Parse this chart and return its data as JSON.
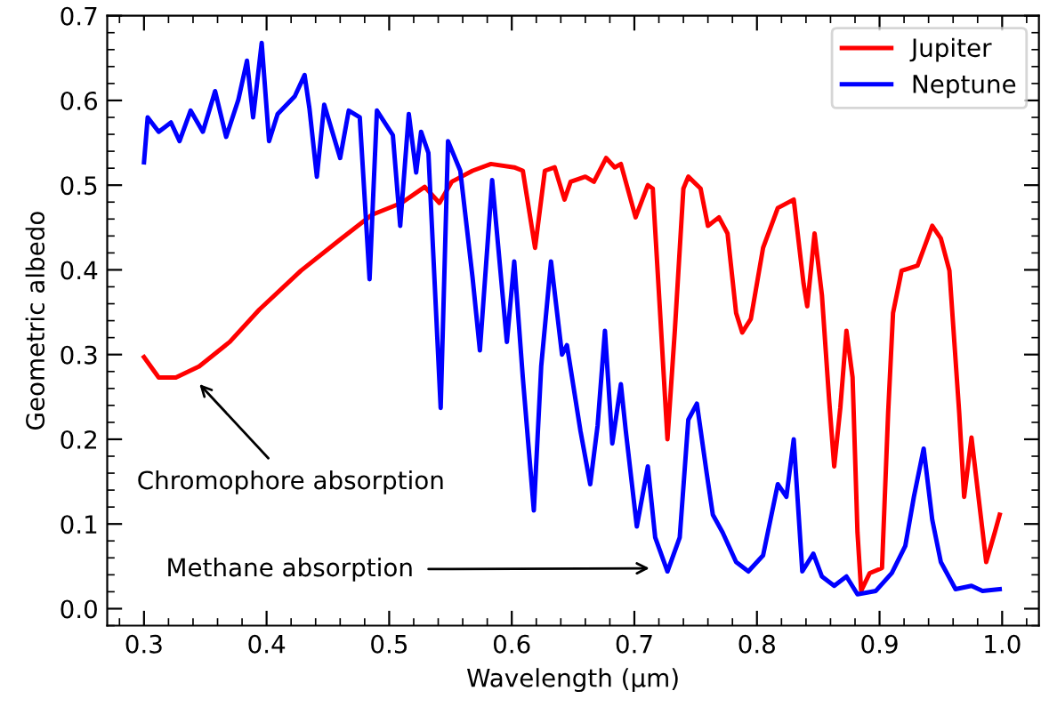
{
  "chart_data": {
    "type": "line",
    "xlabel": "Wavelength (µm)",
    "ylabel": "Geometric albedo",
    "xlim": [
      0.27,
      1.03
    ],
    "ylim": [
      -0.02,
      0.7
    ],
    "xticks": [
      0.3,
      0.4,
      0.5,
      0.6,
      0.7,
      0.8,
      0.9,
      {
        "value": 1,
        "label": "1.0"
      }
    ],
    "yticks": [
      {
        "value": 0,
        "label": "0.0"
      },
      0.1,
      0.2,
      0.3,
      0.4,
      0.5,
      0.6,
      0.7
    ],
    "grid": false,
    "legend": "top right",
    "marker": "none",
    "line_style": "solid",
    "annotations": [
      "Chromophore absorption",
      "Methane absorption"
    ],
    "series": [
      {
        "name": "Jupiter",
        "color": "#ff0000",
        "x": [
          0.3,
          0.312,
          0.326,
          0.345,
          0.37,
          0.394,
          0.428,
          0.461,
          0.486,
          0.51,
          0.529,
          0.541,
          0.551,
          0.568,
          0.583,
          0.602,
          0.609,
          0.619,
          0.627,
          0.635,
          0.643,
          0.648,
          0.66,
          0.667,
          0.677,
          0.684,
          0.689,
          0.701,
          0.711,
          0.715,
          0.721,
          0.727,
          0.733,
          0.74,
          0.744,
          0.754,
          0.76,
          0.769,
          0.776,
          0.783,
          0.788,
          0.795,
          0.805,
          0.817,
          0.83,
          0.838,
          0.841,
          0.847,
          0.853,
          0.859,
          0.863,
          0.868,
          0.873,
          0.878,
          0.882,
          0.885,
          0.892,
          0.902,
          0.907,
          0.911,
          0.918,
          0.931,
          0.943,
          0.95,
          0.957,
          0.965,
          0.969,
          0.975,
          0.987,
          0.994,
          0.998
        ],
        "values": [
          0.297,
          0.273,
          0.273,
          0.286,
          0.315,
          0.353,
          0.399,
          0.437,
          0.465,
          0.479,
          0.498,
          0.479,
          0.504,
          0.517,
          0.525,
          0.521,
          0.517,
          0.426,
          0.517,
          0.521,
          0.483,
          0.504,
          0.51,
          0.504,
          0.532,
          0.521,
          0.525,
          0.462,
          0.5,
          0.496,
          0.349,
          0.2,
          0.328,
          0.496,
          0.51,
          0.496,
          0.452,
          0.462,
          0.443,
          0.349,
          0.326,
          0.342,
          0.426,
          0.473,
          0.483,
          0.384,
          0.357,
          0.443,
          0.37,
          0.244,
          0.168,
          0.237,
          0.328,
          0.273,
          0.09,
          0.021,
          0.042,
          0.048,
          0.231,
          0.349,
          0.399,
          0.405,
          0.452,
          0.437,
          0.399,
          0.231,
          0.132,
          0.202,
          0.055,
          0.09,
          0.111
        ]
      },
      {
        "name": "Neptune",
        "color": "#0000ff",
        "x": [
          0.3,
          0.303,
          0.312,
          0.322,
          0.329,
          0.338,
          0.348,
          0.358,
          0.367,
          0.377,
          0.384,
          0.389,
          0.396,
          0.402,
          0.409,
          0.423,
          0.431,
          0.435,
          0.441,
          0.447,
          0.46,
          0.467,
          0.476,
          0.484,
          0.49,
          0.503,
          0.509,
          0.516,
          0.522,
          0.526,
          0.532,
          0.542,
          0.548,
          0.558,
          0.568,
          0.574,
          0.584,
          0.596,
          0.602,
          0.609,
          0.618,
          0.624,
          0.632,
          0.641,
          0.645,
          0.656,
          0.664,
          0.67,
          0.676,
          0.682,
          0.689,
          0.693,
          0.702,
          0.711,
          0.717,
          0.727,
          0.737,
          0.744,
          0.751,
          0.759,
          0.764,
          0.772,
          0.783,
          0.793,
          0.805,
          0.817,
          0.824,
          0.83,
          0.837,
          0.846,
          0.853,
          0.863,
          0.873,
          0.882,
          0.897,
          0.91,
          0.921,
          0.928,
          0.936,
          0.943,
          0.95,
          0.962,
          0.975,
          0.984,
          0.998
        ],
        "values": [
          0.527,
          0.58,
          0.563,
          0.574,
          0.552,
          0.588,
          0.563,
          0.611,
          0.557,
          0.601,
          0.647,
          0.58,
          0.668,
          0.552,
          0.584,
          0.605,
          0.63,
          0.59,
          0.51,
          0.595,
          0.532,
          0.588,
          0.58,
          0.389,
          0.588,
          0.559,
          0.452,
          0.584,
          0.515,
          0.563,
          0.538,
          0.237,
          0.552,
          0.517,
          0.391,
          0.305,
          0.506,
          0.315,
          0.41,
          0.273,
          0.116,
          0.286,
          0.41,
          0.3,
          0.311,
          0.21,
          0.147,
          0.216,
          0.328,
          0.195,
          0.265,
          0.21,
          0.097,
          0.168,
          0.084,
          0.044,
          0.084,
          0.223,
          0.242,
          0.16,
          0.111,
          0.09,
          0.055,
          0.044,
          0.063,
          0.147,
          0.132,
          0.2,
          0.044,
          0.065,
          0.038,
          0.027,
          0.038,
          0.017,
          0.021,
          0.042,
          0.074,
          0.132,
          0.189,
          0.105,
          0.055,
          0.023,
          0.027,
          0.021,
          0.023
        ]
      }
    ]
  }
}
